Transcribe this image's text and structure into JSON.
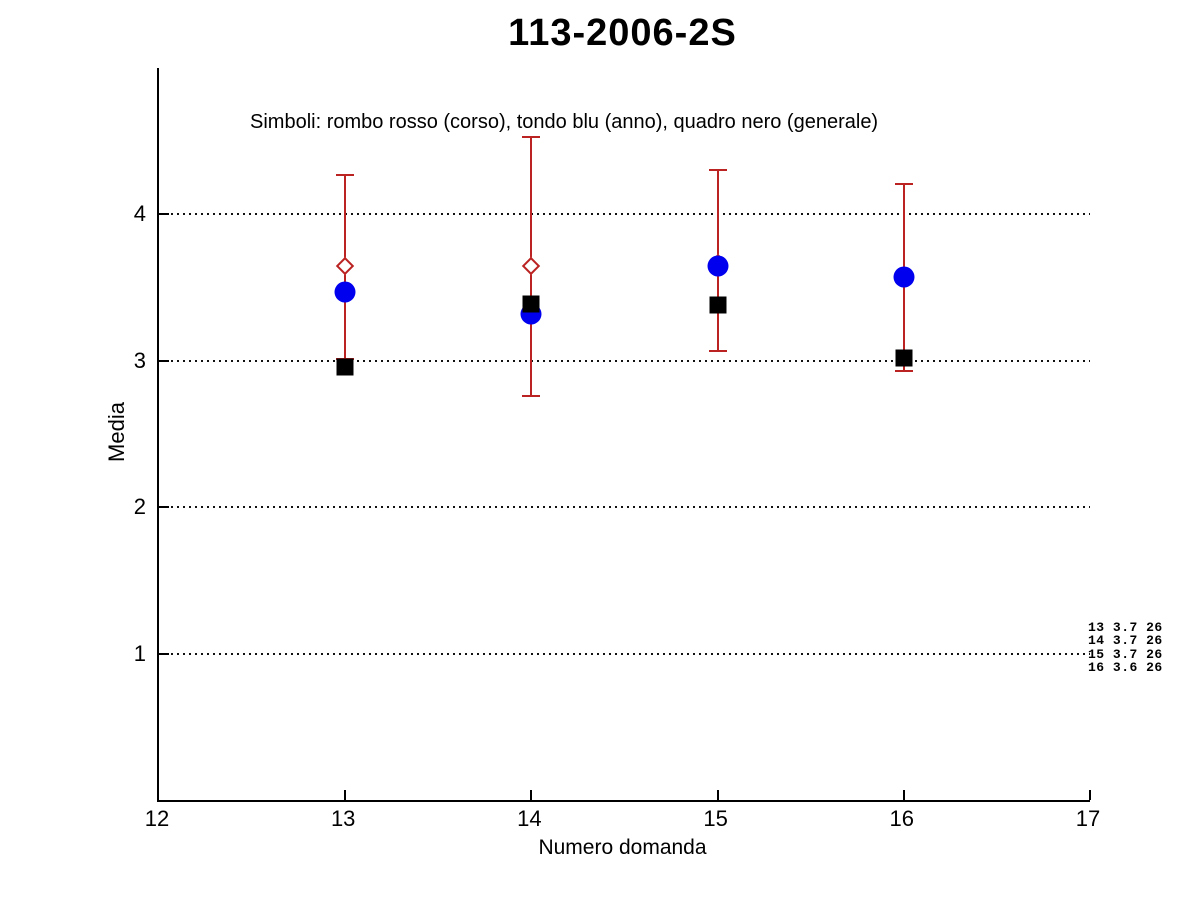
{
  "title": "113-2006-2S",
  "subtitle": "Simboli: rombo rosso (corso), tondo blu (anno), quadro nero (generale)",
  "xlabel": "Numero domanda",
  "ylabel": "Media",
  "colors": {
    "course_red": "#bb2222",
    "year_blue": "#0000ee",
    "general_black": "#000000"
  },
  "side_table": [
    "13 3.7 26",
    "14 3.7 26",
    "15 3.7 26",
    "16 3.6 26"
  ],
  "chart_data": {
    "type": "scatter",
    "x": [
      13,
      14,
      15,
      16
    ],
    "series": [
      {
        "name": "corso (rombo rosso)",
        "marker": "diamond",
        "color": "#bb2222",
        "values": [
          3.65,
          3.65,
          3.67,
          3.57
        ],
        "err_low": [
          3.01,
          2.76,
          3.07,
          2.93
        ],
        "err_high": [
          4.27,
          4.53,
          4.3,
          4.21
        ]
      },
      {
        "name": "anno (tondo blu)",
        "marker": "circle",
        "color": "#0000ee",
        "values": [
          3.47,
          3.32,
          3.65,
          3.57
        ]
      },
      {
        "name": "generale (quadro nero)",
        "marker": "square",
        "color": "#000000",
        "values": [
          2.96,
          3.39,
          3.38,
          3.02
        ]
      }
    ],
    "xlim": [
      12,
      17
    ],
    "ylim": [
      0,
      5
    ],
    "x_ticks": [
      12,
      13,
      14,
      15,
      16,
      17
    ],
    "y_ticks": [
      1,
      2,
      3,
      4
    ],
    "grid": "horizontal dotted at y ticks",
    "legend_position": "text annotation inside plot, top"
  }
}
